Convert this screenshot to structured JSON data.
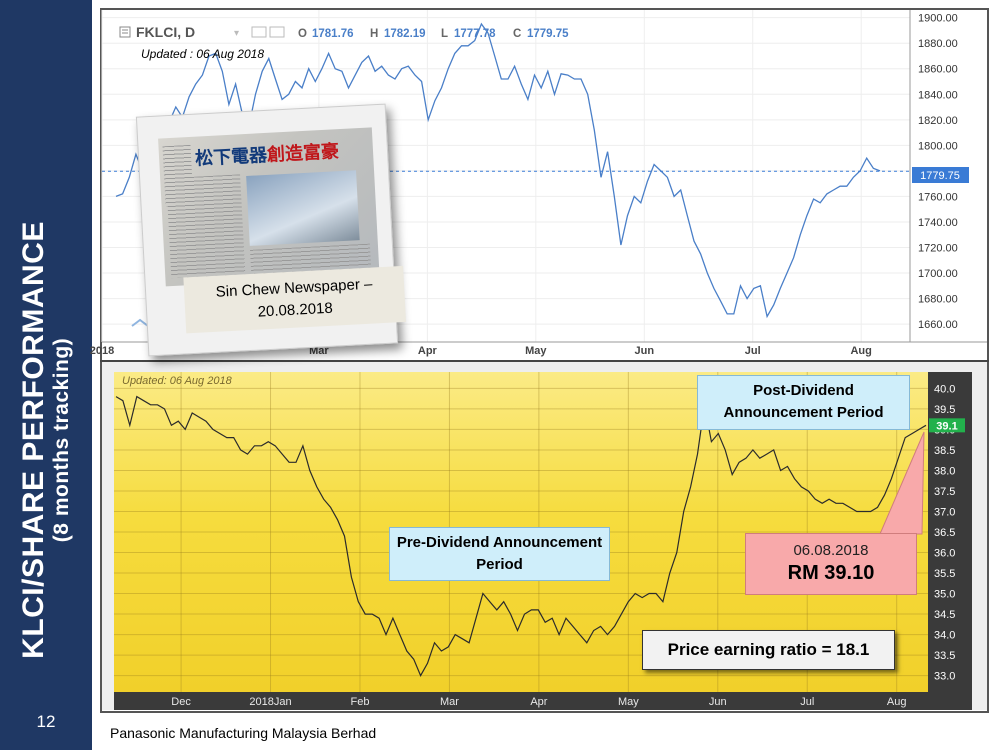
{
  "sidebar": {
    "title": "KLCI/SHARE PERFORMANCE",
    "subtitle": "(8 months tracking)",
    "page_number": "12"
  },
  "footer": {
    "text": "Panasonic Manufacturing Malaysia Berhad"
  },
  "colors": {
    "sidebar": "#1f3864",
    "klci_line": "#4a7fc8",
    "share_line": "#2b2b2b",
    "chart_bg_yellow": "#f7db3c",
    "price_tag": "#22b14c",
    "klci_tag": "#3a7bd5"
  },
  "newspaper": {
    "caption": "Sin Chew Newspaper – 20.08.2018",
    "headline_blue": "松下電器",
    "headline_red": "創造富豪"
  },
  "annotations": {
    "pre_dividend": "Pre-Dividend Announcement  Period",
    "post_dividend": "Post-Dividend Announcement  Period",
    "price_date": "06.08.2018",
    "price_value": "RM 39.10",
    "pe_ratio": "Price earning ratio = 18.1"
  },
  "chart_data": [
    {
      "type": "line",
      "symbol": "FKLCI, D",
      "ohlc_text": {
        "o_label": "O",
        "o": "1781.76",
        "h_label": "H",
        "h": "1782.19",
        "l_label": "L",
        "l": "1777.78",
        "c_label": "C",
        "c": "1779.75"
      },
      "subtitle": "Updated : 06 Aug 2018",
      "last_value_label": "1779.75",
      "last_value": 1779.75,
      "y_ticks": [
        "1900.00",
        "1880.00",
        "1860.00",
        "1840.00",
        "1820.00",
        "1800.00",
        "1780.00",
        "1760.00",
        "1740.00",
        "1720.00",
        "1700.00",
        "1680.00",
        "1660.00"
      ],
      "ylim": [
        1646,
        1906
      ],
      "x_ticks": [
        {
          "label": "2018",
          "month": 0
        },
        {
          "label": "Mar",
          "month": 2
        },
        {
          "label": "Apr",
          "month": 3
        },
        {
          "label": "May",
          "month": 4
        },
        {
          "label": "Jun",
          "month": 5
        },
        {
          "label": "Jul",
          "month": 6
        },
        {
          "label": "Aug",
          "month": 7
        }
      ],
      "xlim": [
        0,
        7.45
      ],
      "values": [
        1760,
        1762,
        1775,
        1793,
        1780,
        1786,
        1812,
        1822,
        1818,
        1830,
        1822,
        1838,
        1848,
        1855,
        1870,
        1872,
        1858,
        1832,
        1848,
        1825,
        1815,
        1840,
        1858,
        1868,
        1852,
        1836,
        1840,
        1850,
        1845,
        1860,
        1850,
        1860,
        1872,
        1860,
        1858,
        1845,
        1855,
        1865,
        1870,
        1858,
        1862,
        1855,
        1852,
        1860,
        1862,
        1855,
        1850,
        1820,
        1835,
        1845,
        1860,
        1872,
        1878,
        1878,
        1882,
        1895,
        1888,
        1870,
        1852,
        1852,
        1862,
        1848,
        1836,
        1855,
        1845,
        1858,
        1840,
        1856,
        1855,
        1852,
        1852,
        1840,
        1812,
        1775,
        1795,
        1760,
        1722,
        1745,
        1760,
        1755,
        1772,
        1785,
        1780,
        1775,
        1760,
        1765,
        1745,
        1725,
        1715,
        1700,
        1688,
        1678,
        1668,
        1668,
        1690,
        1680,
        1688,
        1690,
        1666,
        1675,
        1688,
        1700,
        1712,
        1730,
        1745,
        1758,
        1755,
        1762,
        1765,
        1768,
        1768,
        1775,
        1780,
        1790,
        1782,
        1780
      ]
    },
    {
      "type": "line",
      "subtitle": "Updated: 06 Aug 2018",
      "last_value_label": "39.1",
      "last_value": 39.1,
      "y_ticks": [
        "40.0",
        "39.5",
        "39.0",
        "38.5",
        "38.0",
        "37.5",
        "37.0",
        "36.5",
        "36.0",
        "35.5",
        "35.0",
        "34.5",
        "34.0",
        "33.5",
        "33.0"
      ],
      "ylim": [
        32.6,
        40.4
      ],
      "x_ticks": [
        {
          "label": "Dec",
          "month": 0.75
        },
        {
          "label": "2018Jan",
          "month": 1.75
        },
        {
          "label": "Feb",
          "month": 2.75
        },
        {
          "label": "Mar",
          "month": 3.75
        },
        {
          "label": "Apr",
          "month": 4.75
        },
        {
          "label": "May",
          "month": 5.75
        },
        {
          "label": "Jun",
          "month": 6.75
        },
        {
          "label": "Jul",
          "month": 7.75
        },
        {
          "label": "Aug",
          "month": 8.75
        }
      ],
      "xlim": [
        0,
        9.1
      ],
      "values": [
        39.8,
        39.7,
        39.1,
        39.8,
        39.7,
        39.6,
        39.6,
        39.5,
        39.1,
        39.2,
        39.0,
        39.4,
        39.3,
        39.2,
        39.0,
        38.9,
        38.8,
        38.8,
        38.5,
        38.4,
        38.6,
        38.6,
        38.7,
        38.6,
        38.4,
        38.2,
        38.2,
        38.6,
        38.0,
        37.6,
        37.3,
        37.1,
        36.8,
        36.4,
        35.4,
        34.8,
        34.5,
        34.5,
        34.4,
        34.0,
        34.4,
        34.0,
        33.6,
        33.4,
        33.0,
        33.3,
        33.8,
        33.6,
        33.7,
        34.0,
        33.9,
        33.8,
        34.4,
        35.0,
        34.8,
        34.6,
        34.8,
        34.5,
        34.1,
        34.5,
        34.6,
        34.6,
        34.3,
        34.4,
        34.0,
        34.4,
        34.2,
        34.0,
        33.8,
        34.1,
        34.2,
        34.0,
        34.2,
        34.5,
        34.8,
        35.0,
        34.9,
        35.0,
        35.0,
        34.8,
        35.5,
        36.0,
        37.0,
        37.6,
        38.4,
        39.6,
        38.7,
        38.9,
        38.5,
        37.9,
        38.2,
        38.3,
        38.5,
        38.3,
        38.4,
        38.5,
        38.0,
        38.1,
        37.8,
        37.6,
        37.5,
        37.3,
        37.2,
        37.3,
        37.2,
        37.2,
        37.1,
        37.0,
        37.0,
        37.0,
        37.1,
        37.4,
        37.8,
        38.3,
        38.8,
        38.9,
        39.0,
        39.1
      ]
    }
  ]
}
